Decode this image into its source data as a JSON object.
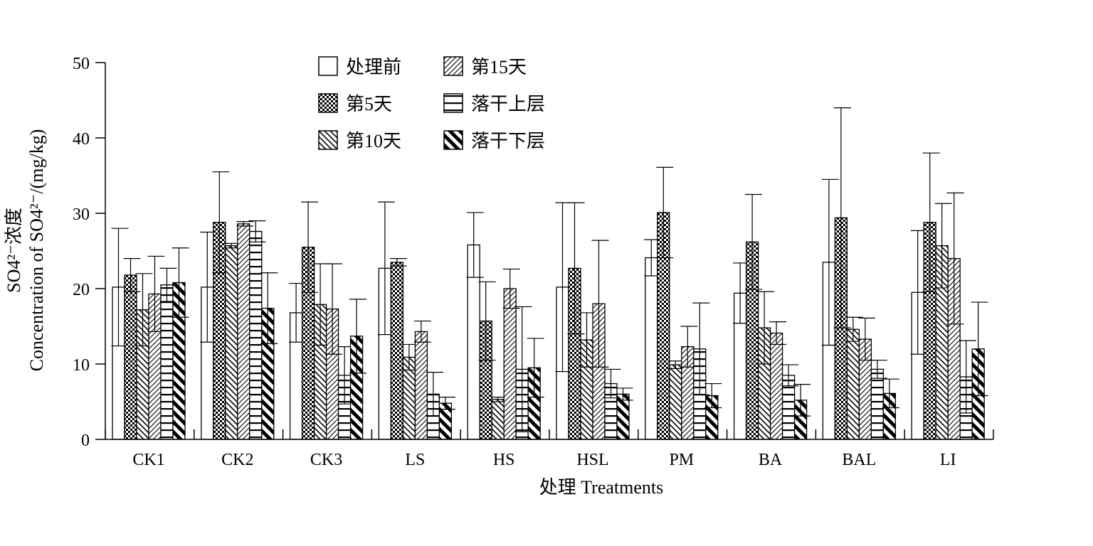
{
  "chart_data": {
    "type": "bar",
    "categories": [
      "CK1",
      "CK2",
      "CK3",
      "LS",
      "HS",
      "HSL",
      "PM",
      "BA",
      "BAL",
      "LI"
    ],
    "xlabel": "处理 Treatments",
    "ylabel": {
      "line1": "SO4²⁻浓度",
      "line2": "Concentration of SO4²⁻/(mg/kg)"
    },
    "ylim": [
      0,
      50
    ],
    "yticks": [
      0,
      10,
      20,
      30,
      40,
      50
    ],
    "grid": false,
    "legend_position": "top-center",
    "series": [
      {
        "name": "处理前",
        "pattern": "blank",
        "values": [
          20.2,
          20.2,
          16.8,
          22.7,
          25.8,
          20.2,
          24.1,
          19.4,
          23.5,
          19.5
        ],
        "errors": [
          7.8,
          7.3,
          3.9,
          8.8,
          4.3,
          11.2,
          2.4,
          4.0,
          11.0,
          8.2
        ]
      },
      {
        "name": "第5天",
        "pattern": "checker",
        "values": [
          21.8,
          28.8,
          25.5,
          23.5,
          15.7,
          22.7,
          30.1,
          26.2,
          29.4,
          28.8
        ],
        "errors": [
          2.2,
          6.7,
          6.0,
          0.5,
          5.2,
          8.7,
          6.0,
          6.3,
          14.6,
          9.2
        ]
      },
      {
        "name": "第10天",
        "pattern": "backslash",
        "values": [
          17.2,
          25.7,
          17.9,
          10.9,
          5.3,
          13.2,
          9.9,
          14.8,
          14.6,
          25.7
        ],
        "errors": [
          4.8,
          0.3,
          5.4,
          1.7,
          0.3,
          3.6,
          0.5,
          4.8,
          1.6,
          5.6
        ]
      },
      {
        "name": "第15天",
        "pattern": "slash",
        "values": [
          19.3,
          28.6,
          17.3,
          14.3,
          20.0,
          18.0,
          12.3,
          14.1,
          13.3,
          24.0
        ],
        "errors": [
          5.0,
          0.3,
          6.0,
          1.4,
          2.6,
          8.4,
          2.7,
          1.5,
          2.8,
          8.7
        ]
      },
      {
        "name": "落干上层",
        "pattern": "horizontal",
        "values": [
          20.5,
          27.6,
          8.5,
          6.0,
          9.3,
          7.4,
          12.0,
          8.5,
          9.3,
          8.3
        ],
        "errors": [
          2.2,
          1.4,
          3.8,
          2.9,
          8.3,
          1.9,
          6.1,
          1.4,
          1.2,
          4.8
        ]
      },
      {
        "name": "落干下层",
        "pattern": "diagonal-bold",
        "values": [
          20.8,
          17.4,
          13.7,
          4.8,
          9.5,
          6.0,
          5.8,
          5.2,
          6.1,
          12.0
        ],
        "errors": [
          4.6,
          4.7,
          4.9,
          0.8,
          3.9,
          0.8,
          1.6,
          2.1,
          1.9,
          6.2
        ]
      }
    ]
  }
}
